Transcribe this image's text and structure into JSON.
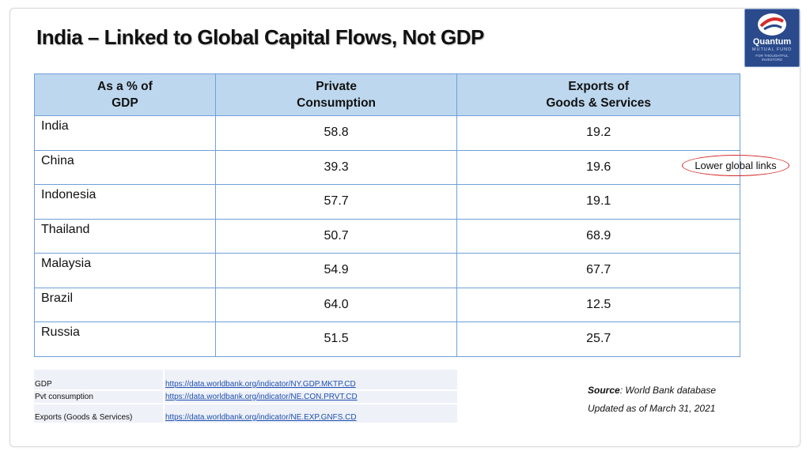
{
  "title": "India – Linked to Global Capital Flows, Not GDP",
  "logo": {
    "brand": "Quantum",
    "sub": "MUTUAL FUND",
    "tagline": "FOR THOUGHTFUL INVESTORS"
  },
  "table": {
    "headers": [
      "As a % of GDP",
      "Private Consumption",
      "Exports of Goods & Services"
    ],
    "header_lines": [
      [
        "As a % of",
        "GDP"
      ],
      [
        "Private",
        "Consumption"
      ],
      [
        "Exports of",
        "Goods & Services"
      ]
    ],
    "rows": [
      {
        "country": "India",
        "private_consumption": "58.8",
        "exports": "19.2"
      },
      {
        "country": "China",
        "private_consumption": "39.3",
        "exports": "19.6"
      },
      {
        "country": "Indonesia",
        "private_consumption": "57.7",
        "exports": "19.1"
      },
      {
        "country": "Thailand",
        "private_consumption": "50.7",
        "exports": "68.9"
      },
      {
        "country": "Malaysia",
        "private_consumption": "54.9",
        "exports": "67.7"
      },
      {
        "country": "Brazil",
        "private_consumption": "64.0",
        "exports": "12.5"
      },
      {
        "country": "Russia",
        "private_consumption": "51.5",
        "exports": "25.7"
      }
    ]
  },
  "callout": "Lower global links",
  "links": [
    {
      "label": "GDP",
      "url": "https://data.worldbank.org/indicator/NY.GDP.MKTP.CD"
    },
    {
      "label": "Pvt consumption",
      "url": "https://data.worldbank.org/indicator/NE.CON.PRVT.CD"
    },
    {
      "label": "Exports (Goods & Services)",
      "url": "https://data.worldbank.org/indicator/NE.EXP.GNFS.CD"
    }
  ],
  "source": {
    "label": "Source",
    "text": ": World Bank database",
    "updated": "Updated as of March 31, 2021"
  },
  "colors": {
    "header_bg": "#bdd7ee",
    "table_border": "#6f9fd8",
    "callout_border": "#d62b2b",
    "logo_bg": "#2a4a8c",
    "link": "#1f4fb0"
  }
}
